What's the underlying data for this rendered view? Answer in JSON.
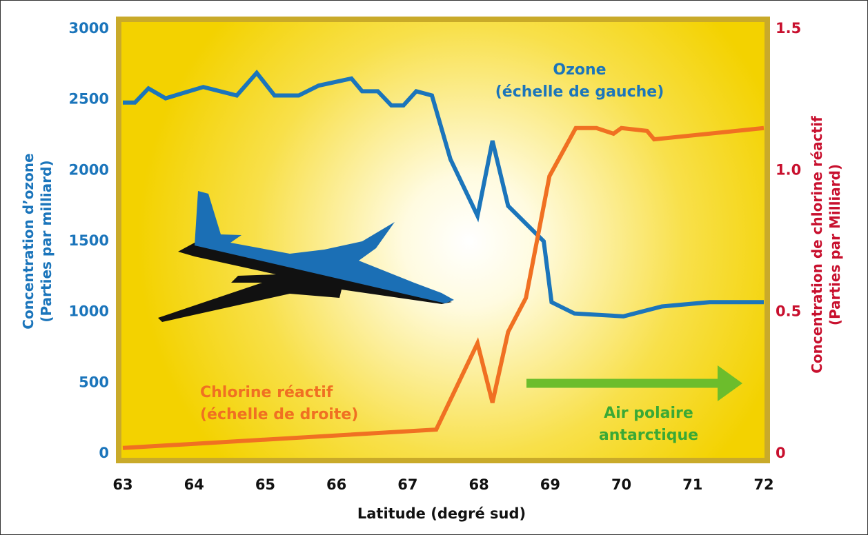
{
  "chart_data": {
    "type": "line",
    "xlabel": "Latitude (degré sud)",
    "ylabel": [
      "Concentration d’ozone",
      "(Parties par milliard)"
    ],
    "y2label": [
      "Concentration de chlorine réactif",
      "(Parties par Milliard)"
    ],
    "xlim": [
      63,
      72
    ],
    "xticks": [
      63,
      64,
      65,
      66,
      67,
      68,
      69,
      70,
      71,
      72
    ],
    "ylim": [
      0,
      3000
    ],
    "yticks": [
      0,
      500,
      1000,
      1500,
      2000,
      2500,
      3000
    ],
    "y2lim": [
      0,
      1.5
    ],
    "y2ticks": [
      0,
      0.5,
      {
        "value": 1,
        "label": "1.0"
      },
      1.5
    ],
    "y_color": "#1b75bb",
    "y2_color": "#c8102e",
    "series": [
      {
        "name": [
          "Ozone",
          "(échelle de gauche)"
        ],
        "color": "#1b75bb",
        "axis": "y",
        "x": [
          63.0,
          63.17,
          63.36,
          63.6,
          64.13,
          64.6,
          64.88,
          65.13,
          65.47,
          65.75,
          66.21,
          66.36,
          66.58,
          66.77,
          66.94,
          67.12,
          67.34,
          67.6,
          67.98,
          68.19,
          68.41,
          68.91,
          69.02,
          69.34,
          70.03,
          70.57,
          71.24,
          72.0
        ],
        "values": [
          2480,
          2480,
          2580,
          2510,
          2590,
          2530,
          2690,
          2530,
          2530,
          2600,
          2650,
          2560,
          2560,
          2460,
          2460,
          2560,
          2530,
          2080,
          1680,
          2210,
          1750,
          1500,
          1070,
          990,
          970,
          1040,
          1070,
          1070
        ]
      },
      {
        "name": [
          "Chlorine réactif",
          "(échelle de droite)"
        ],
        "color": "#f07022",
        "axis": "y2",
        "x": [
          63.0,
          67.4,
          67.98,
          68.19,
          68.41,
          68.66,
          68.99,
          69.36,
          69.65,
          69.89,
          70.0,
          70.36,
          70.46,
          72.0
        ],
        "values": [
          0.02,
          0.085,
          0.39,
          0.18,
          0.43,
          0.55,
          0.98,
          1.15,
          1.15,
          1.13,
          1.15,
          1.14,
          1.11,
          1.15
        ]
      }
    ],
    "annotation": {
      "text": [
        "Air polaire",
        "antarctique"
      ],
      "color": "#3aa935"
    }
  }
}
